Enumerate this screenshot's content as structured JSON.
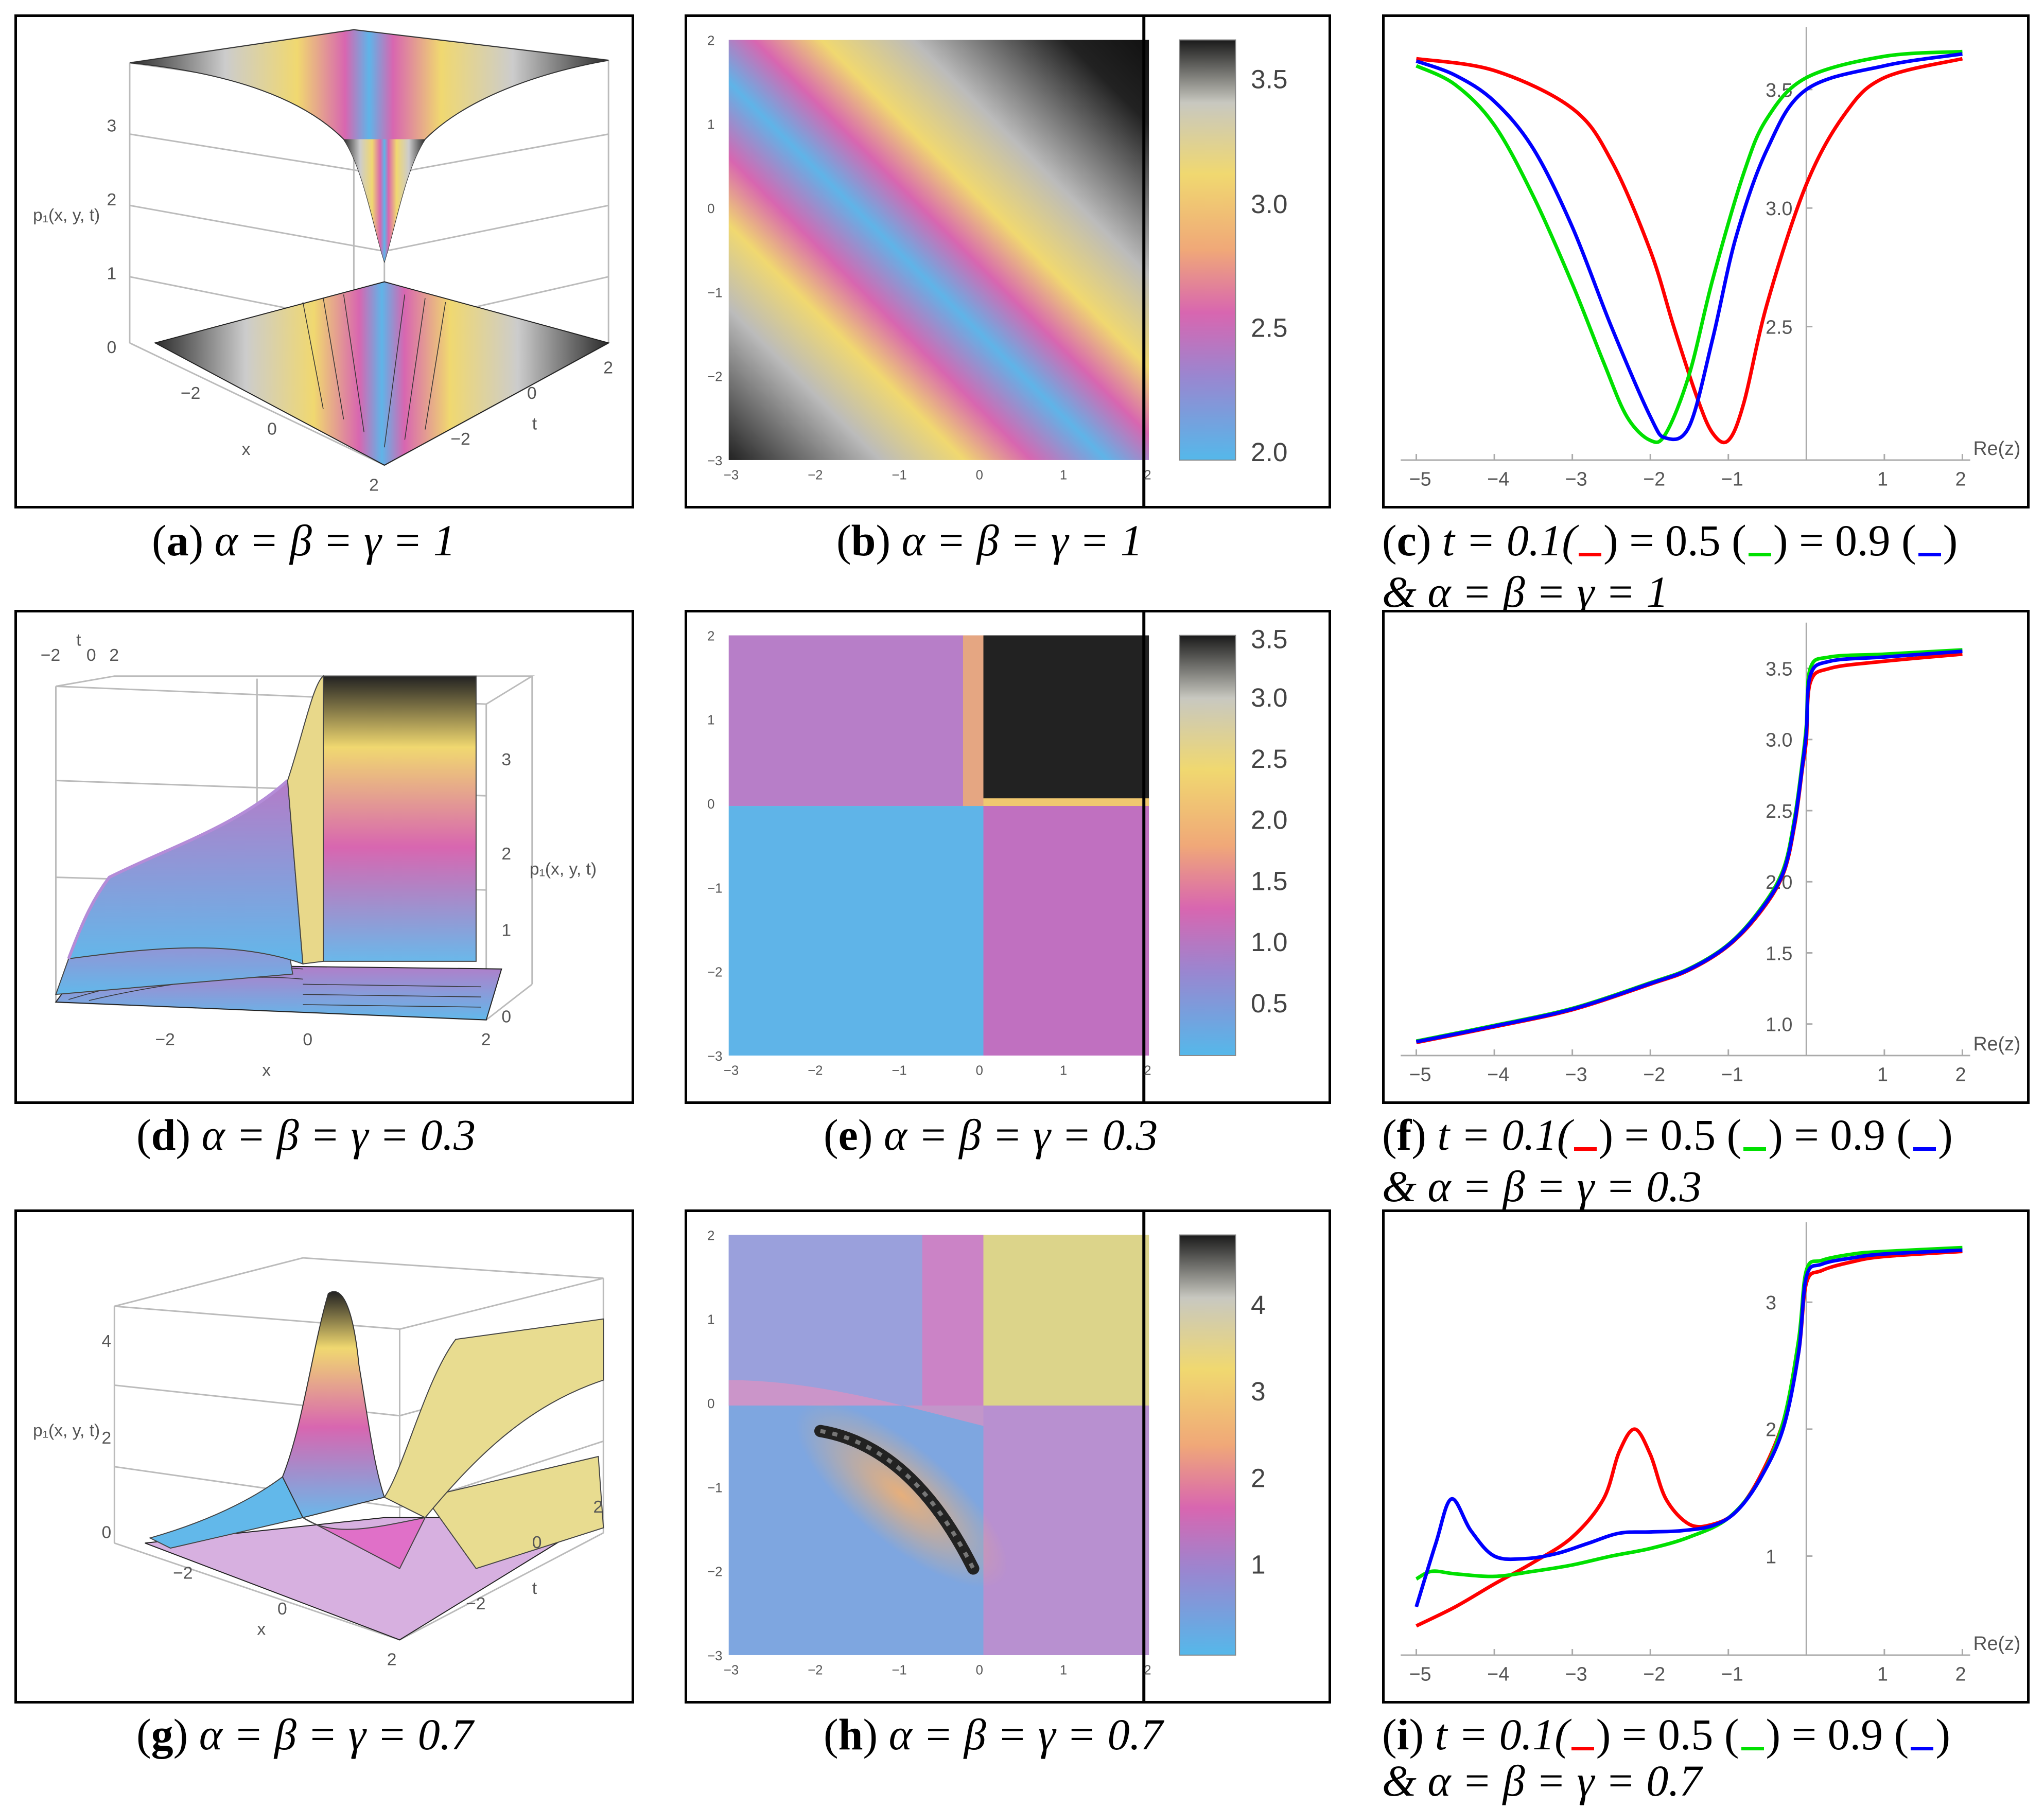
{
  "panels": {
    "a": {
      "letter": "a",
      "text": "α = β = γ = 1",
      "zlabel": "p₁(x, y, t)",
      "xlabel": "x",
      "tlabel": "t",
      "zticks": [
        "0",
        "1",
        "2",
        "3"
      ],
      "xticks": [
        "−2",
        "0",
        "2"
      ],
      "tticks": [
        "2",
        "0",
        "−2"
      ]
    },
    "b": {
      "letter": "b",
      "text": "α = β = γ = 1",
      "xticks": [
        "−3",
        "−2",
        "−1",
        "0",
        "1",
        "2"
      ],
      "yticks": [
        "2",
        "1",
        "0",
        "−1",
        "−2",
        "−3"
      ],
      "colorbar": [
        "3.5",
        "3.0",
        "2.5",
        "2.0"
      ]
    },
    "c": {
      "letter": "c",
      "line1": "t = 0.1(",
      "line1b": ") = 0.5 (",
      "line1c": ") = 0.9 (",
      "line1d": ")",
      "line2": "& α =  β =  γ =  1"
    },
    "d": {
      "letter": "d",
      "text": "α = β = γ = 0.3",
      "zlabel": "p₁(x, y, t)",
      "xlabel": "x",
      "tlabel": "t",
      "zticks": [
        "0",
        "1",
        "2",
        "3"
      ],
      "xticks": [
        "−2",
        "0",
        "2"
      ],
      "tticks": [
        "−2",
        "0",
        "2"
      ]
    },
    "e": {
      "letter": "e",
      "text": "α = β = γ = 0.3",
      "xticks": [
        "−3",
        "−2",
        "−1",
        "0",
        "1",
        "2"
      ],
      "yticks": [
        "2",
        "1",
        "0",
        "−1",
        "−2",
        "−3"
      ],
      "colorbar": [
        "3.5",
        "3.0",
        "2.5",
        "2.0",
        "1.5",
        "1.0",
        "0.5"
      ]
    },
    "f": {
      "letter": "f",
      "line1": "t = 0.1(",
      "line1b": ") = 0.5 (",
      "line1c": ") = 0.9 (",
      "line1d": ")",
      "line2": "& α =  β =  γ =  0.3"
    },
    "g": {
      "letter": "g",
      "text": "α = β = γ = 0.7",
      "zlabel": "p₁(x, y, t)",
      "xlabel": "x",
      "tlabel": "t",
      "zticks": [
        "0",
        "2",
        "4"
      ],
      "xticks": [
        "−2",
        "0",
        "2"
      ],
      "tticks": [
        "2",
        "0",
        "−2"
      ]
    },
    "h": {
      "letter": "h",
      "text": "α = β = γ = 0.7",
      "xticks": [
        "−3",
        "−2",
        "−1",
        "0",
        "1",
        "2"
      ],
      "yticks": [
        "2",
        "1",
        "0",
        "−1",
        "−2",
        "−3"
      ],
      "colorbar": [
        "4",
        "3",
        "2",
        "1"
      ]
    },
    "i": {
      "letter": "i",
      "line1": "t = 0.1(",
      "line1b": ") = 0.5 (",
      "line1c": ") = 0.9 (",
      "line1d": ")",
      "line2": "& α =  β =  γ =  0.7"
    }
  },
  "colors": {
    "red": "#ff0000",
    "green": "#00e000",
    "blue": "#0000ff"
  },
  "chart_data": [
    {
      "id": "c",
      "type": "line",
      "xlabel": "Re(z)",
      "xlim": [
        -5.2,
        2.1
      ],
      "ylim": [
        1.98,
        3.72
      ],
      "xticks": [
        -5,
        -4,
        -3,
        -2,
        -1,
        1,
        2
      ],
      "yticks": [
        2.5,
        3.0,
        3.5
      ],
      "ytick_labels": [
        "2.5",
        "3.0",
        "3.5"
      ],
      "series": [
        {
          "color": "#ff0000",
          "x": [
            -5,
            -4,
            -3,
            -2.5,
            -2,
            -1.7,
            -1.4,
            -1.2,
            -1.0,
            -0.8,
            -0.5,
            0,
            0.5,
            1,
            2
          ],
          "y": [
            3.63,
            3.58,
            3.42,
            3.2,
            2.82,
            2.5,
            2.2,
            2.05,
            2.02,
            2.18,
            2.6,
            3.1,
            3.4,
            3.55,
            3.63
          ]
        },
        {
          "color": "#00e000",
          "x": [
            -5,
            -4.5,
            -4,
            -3.5,
            -3,
            -2.6,
            -2.3,
            -2,
            -1.8,
            -1.5,
            -1.2,
            -0.8,
            -0.5,
            0,
            1,
            2
          ],
          "y": [
            3.6,
            3.52,
            3.35,
            3.05,
            2.68,
            2.35,
            2.12,
            2.02,
            2.05,
            2.3,
            2.7,
            3.15,
            3.38,
            3.55,
            3.64,
            3.66
          ]
        },
        {
          "color": "#0000ff",
          "x": [
            -5,
            -4.5,
            -4,
            -3.5,
            -3,
            -2.5,
            -2.0,
            -1.8,
            -1.5,
            -1.2,
            -0.9,
            -0.5,
            0,
            1,
            2
          ],
          "y": [
            3.62,
            3.56,
            3.45,
            3.25,
            2.92,
            2.5,
            2.12,
            2.03,
            2.08,
            2.45,
            2.88,
            3.25,
            3.5,
            3.6,
            3.65
          ]
        }
      ]
    },
    {
      "id": "f",
      "type": "line",
      "xlabel": "Re(z)",
      "xlim": [
        -5.2,
        2.1
      ],
      "ylim": [
        0.85,
        3.75
      ],
      "xticks": [
        -5,
        -4,
        -3,
        -2,
        -1,
        1,
        2
      ],
      "yticks": [
        1.0,
        1.5,
        2.0,
        2.5,
        3.0,
        3.5
      ],
      "ytick_labels": [
        "1.0",
        "1.5",
        "2.0",
        "2.5",
        "3.0",
        "3.5"
      ],
      "series": [
        {
          "color": "#ff0000",
          "x": [
            -5,
            -4,
            -3,
            -2,
            -1.5,
            -1,
            -0.6,
            -0.3,
            -0.15,
            -0.05,
            0,
            0.05,
            0.3,
            1,
            2
          ],
          "y": [
            0.87,
            0.98,
            1.1,
            1.28,
            1.38,
            1.55,
            1.78,
            2.05,
            2.4,
            2.8,
            3.0,
            3.4,
            3.5,
            3.55,
            3.6
          ]
        },
        {
          "color": "#00e000",
          "x": [
            -5,
            -4,
            -3,
            -2,
            -1.5,
            -1,
            -0.6,
            -0.3,
            -0.15,
            -0.05,
            0,
            0.05,
            0.3,
            1,
            2
          ],
          "y": [
            0.88,
            0.99,
            1.11,
            1.29,
            1.39,
            1.56,
            1.8,
            2.08,
            2.45,
            2.85,
            3.1,
            3.5,
            3.58,
            3.6,
            3.63
          ]
        },
        {
          "color": "#0000ff",
          "x": [
            -5,
            -4,
            -3,
            -2,
            -1.5,
            -1,
            -0.6,
            -0.3,
            -0.15,
            -0.05,
            0,
            0.05,
            0.3,
            1,
            2
          ],
          "y": [
            0.875,
            0.985,
            1.105,
            1.285,
            1.385,
            1.555,
            1.79,
            2.06,
            2.42,
            2.82,
            3.05,
            3.45,
            3.55,
            3.58,
            3.62
          ]
        }
      ]
    },
    {
      "id": "i",
      "type": "line",
      "xlabel": "Re(z)",
      "xlim": [
        -5.2,
        2.1
      ],
      "ylim": [
        0.3,
        3.55
      ],
      "xticks": [
        -5,
        -4,
        -3,
        -2,
        -1,
        1,
        2
      ],
      "yticks": [
        1,
        2,
        3
      ],
      "ytick_labels": [
        "1",
        "2",
        "3"
      ],
      "series": [
        {
          "color": "#ff0000",
          "x": [
            -5,
            -4.5,
            -4,
            -3.5,
            -3,
            -2.6,
            -2.4,
            -2.2,
            -2.0,
            -1.8,
            -1.5,
            -1.2,
            -0.9,
            -0.6,
            -0.3,
            -0.1,
            0,
            0.2,
            0.6,
            1,
            2
          ],
          "y": [
            0.45,
            0.6,
            0.78,
            0.95,
            1.15,
            1.45,
            1.82,
            2.0,
            1.8,
            1.45,
            1.25,
            1.25,
            1.35,
            1.62,
            2.05,
            2.6,
            3.15,
            3.25,
            3.32,
            3.36,
            3.4
          ]
        },
        {
          "color": "#00e000",
          "x": [
            -5,
            -4.8,
            -4.5,
            -4.0,
            -3.5,
            -3,
            -2.5,
            -2,
            -1.5,
            -1,
            -0.6,
            -0.3,
            -0.1,
            0,
            0.2,
            0.6,
            1,
            2
          ],
          "y": [
            0.82,
            0.88,
            0.86,
            0.84,
            0.88,
            0.93,
            1.0,
            1.06,
            1.15,
            1.3,
            1.6,
            2.05,
            2.7,
            3.25,
            3.33,
            3.38,
            3.4,
            3.43
          ]
        },
        {
          "color": "#0000ff",
          "x": [
            -5,
            -4.75,
            -4.55,
            -4.3,
            -4.0,
            -3.6,
            -3.2,
            -2.8,
            -2.4,
            -2.0,
            -1.6,
            -1.2,
            -0.9,
            -0.6,
            -0.3,
            -0.1,
            0,
            0.2,
            0.6,
            1,
            2
          ],
          "y": [
            0.6,
            1.1,
            1.45,
            1.2,
            1.0,
            0.98,
            1.02,
            1.1,
            1.18,
            1.19,
            1.2,
            1.24,
            1.35,
            1.6,
            2.0,
            2.6,
            3.2,
            3.3,
            3.35,
            3.38,
            3.41
          ]
        }
      ]
    }
  ]
}
